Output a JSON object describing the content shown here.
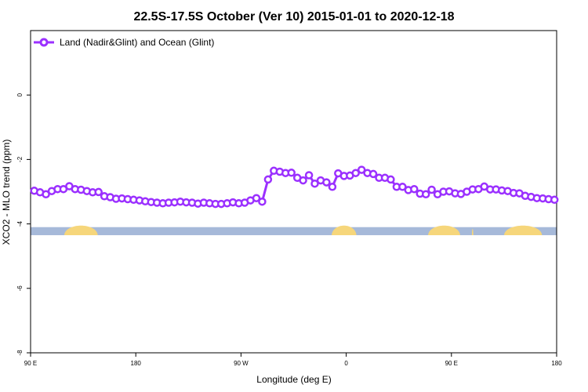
{
  "chart_data": {
    "type": "line",
    "title": "22.5S-17.5S October (Ver 10)   2015-01-01 to 2020-12-18",
    "xlabel": "Longitude (deg E)",
    "ylabel": "XCO2 - MLO trend (ppm)",
    "xlim": [
      90,
      450
    ],
    "ylim": [
      -8,
      2
    ],
    "x_ticks": [
      {
        "value": 90,
        "label": "90 E"
      },
      {
        "value": 162,
        "label": "180"
      },
      {
        "value": 234,
        "label": "90 W"
      },
      {
        "value": 306,
        "label": "0"
      },
      {
        "value": 378,
        "label": "90 E"
      },
      {
        "value": 450,
        "label": "180"
      }
    ],
    "y_ticks": [
      {
        "value": 0,
        "label": "0"
      },
      {
        "value": -2,
        "label": "-2"
      },
      {
        "value": -4,
        "label": "-4"
      },
      {
        "value": -6,
        "label": "-6"
      },
      {
        "value": -8,
        "label": "-8"
      }
    ],
    "grid": false,
    "legend_position": "top-left",
    "series": [
      {
        "name": "Land (Nadir&Glint) and Ocean (Glint)",
        "color": "#9b30ff",
        "x": [
          92.5,
          96.5,
          100.5,
          104.5,
          108.5,
          112.5,
          116.5,
          120.5,
          124.5,
          128.5,
          132.5,
          136.5,
          140.5,
          144.5,
          148.5,
          152.5,
          156.5,
          160.5,
          164.5,
          168.5,
          172.5,
          176.5,
          180.5,
          184.5,
          188.5,
          192.5,
          196.5,
          200.5,
          204.5,
          208.5,
          212.5,
          216.5,
          220.5,
          224.5,
          228.5,
          232.5,
          236.5,
          240.5,
          244.5,
          248.5,
          252.5,
          256.5,
          260.5,
          264.5,
          268.5,
          272.5,
          276.5,
          280.5,
          284.5,
          288.5,
          292.5,
          296.5,
          300.5,
          304.5,
          308.5,
          312.5,
          316.5,
          320.5,
          324.5,
          328.5,
          332.5,
          336.5,
          340.5,
          344.5,
          348.5,
          352.5,
          356.5,
          360.5,
          364.5,
          368.5,
          372.5,
          376.5,
          380.5,
          384.5,
          388.5,
          392.5,
          396.5,
          400.5,
          404.5,
          408.5,
          412.5,
          416.5,
          420.5,
          424.5,
          428.5,
          432.5,
          436.5,
          440.5,
          444.5,
          448.5
        ],
        "values": [
          -2.97,
          -3.02,
          -3.08,
          -2.98,
          -2.92,
          -2.92,
          -2.83,
          -2.92,
          -2.94,
          -2.98,
          -3.02,
          -3.01,
          -3.14,
          -3.17,
          -3.22,
          -3.21,
          -3.23,
          -3.25,
          -3.27,
          -3.3,
          -3.32,
          -3.34,
          -3.36,
          -3.34,
          -3.33,
          -3.31,
          -3.33,
          -3.34,
          -3.37,
          -3.34,
          -3.36,
          -3.38,
          -3.38,
          -3.36,
          -3.33,
          -3.36,
          -3.34,
          -3.27,
          -3.2,
          -3.31,
          -2.62,
          -2.35,
          -2.38,
          -2.42,
          -2.41,
          -2.57,
          -2.65,
          -2.49,
          -2.75,
          -2.65,
          -2.71,
          -2.85,
          -2.43,
          -2.51,
          -2.5,
          -2.42,
          -2.32,
          -2.42,
          -2.45,
          -2.57,
          -2.57,
          -2.62,
          -2.85,
          -2.85,
          -2.95,
          -2.92,
          -3.06,
          -3.08,
          -2.94,
          -3.08,
          -3.0,
          -2.99,
          -3.05,
          -3.07,
          -3.0,
          -2.93,
          -2.92,
          -2.84,
          -2.93,
          -2.93,
          -2.96,
          -2.98,
          -3.04,
          -3.05,
          -3.13,
          -3.16,
          -3.2,
          -3.21,
          -3.23,
          -3.25
        ]
      }
    ]
  },
  "land_ocean_band": {
    "y_top": -4.1,
    "y_bottom": -4.35,
    "ocean_color": "#a6b9d9",
    "land_color": "#f6d67b",
    "land_segments": [
      [
        113,
        136
      ],
      [
        296,
        313
      ],
      [
        362,
        384
      ],
      [
        392,
        393
      ],
      [
        414,
        440
      ]
    ]
  }
}
